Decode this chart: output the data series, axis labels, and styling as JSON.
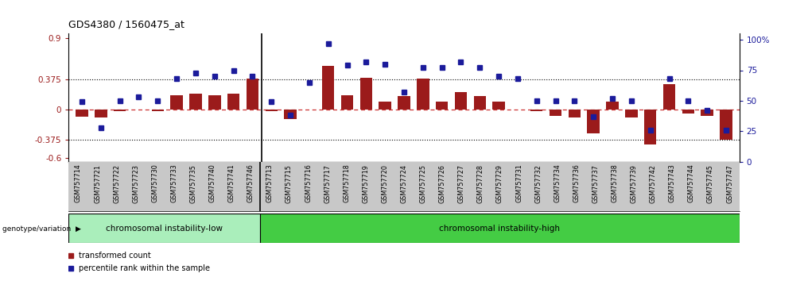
{
  "title": "GDS4380 / 1560475_at",
  "samples": [
    "GSM757714",
    "GSM757721",
    "GSM757722",
    "GSM757723",
    "GSM757730",
    "GSM757733",
    "GSM757735",
    "GSM757740",
    "GSM757741",
    "GSM757746",
    "GSM757713",
    "GSM757715",
    "GSM757716",
    "GSM757717",
    "GSM757718",
    "GSM757719",
    "GSM757720",
    "GSM757724",
    "GSM757725",
    "GSM757726",
    "GSM757727",
    "GSM757728",
    "GSM757729",
    "GSM757731",
    "GSM757732",
    "GSM757734",
    "GSM757736",
    "GSM757737",
    "GSM757738",
    "GSM757739",
    "GSM757742",
    "GSM757743",
    "GSM757744",
    "GSM757745",
    "GSM757747"
  ],
  "bar_values": [
    -0.09,
    -0.1,
    -0.02,
    0.0,
    -0.02,
    0.18,
    0.2,
    0.18,
    0.2,
    0.385,
    -0.02,
    -0.12,
    0.0,
    0.55,
    0.18,
    0.4,
    0.1,
    0.17,
    0.385,
    0.1,
    0.22,
    0.17,
    0.1,
    0.0,
    -0.02,
    -0.08,
    -0.1,
    -0.3,
    0.1,
    -0.1,
    -0.44,
    0.32,
    -0.05,
    -0.08,
    -0.38
  ],
  "percentile_values": [
    49,
    28,
    50,
    53,
    50,
    68,
    73,
    70,
    75,
    70,
    49,
    38,
    65,
    97,
    79,
    82,
    80,
    57,
    77,
    77,
    82,
    77,
    70,
    68,
    50,
    50,
    50,
    37,
    52,
    50,
    26,
    68,
    50,
    42,
    26
  ],
  "group_low_count": 10,
  "group_high_count": 25,
  "group_low_label": "chromosomal instability-low",
  "group_high_label": "chromosomal instability-high",
  "group_label": "genotype/variation",
  "bar_color": "#9B1B1B",
  "dot_color": "#1B1B9B",
  "zero_line_color": "#CC3333",
  "ylim_left": [
    -0.65,
    0.95
  ],
  "ylim_right": [
    0,
    105
  ],
  "yticks_left": [
    -0.6,
    -0.375,
    0.0,
    0.375,
    0.9
  ],
  "yticks_right": [
    0,
    25,
    50,
    75,
    100
  ],
  "ytick_labels_left": [
    "-0.6",
    "-0.375",
    "0",
    "0.375",
    "0.9"
  ],
  "ytick_labels_right": [
    "0",
    "25",
    "50",
    "75",
    "100%"
  ],
  "hlines": [
    0.375,
    -0.375
  ],
  "legend_items": [
    "transformed count",
    "percentile rank within the sample"
  ],
  "group_low_color": "#AAEEBB",
  "group_high_color": "#44CC44",
  "xtick_bg": "#CCCCCC"
}
